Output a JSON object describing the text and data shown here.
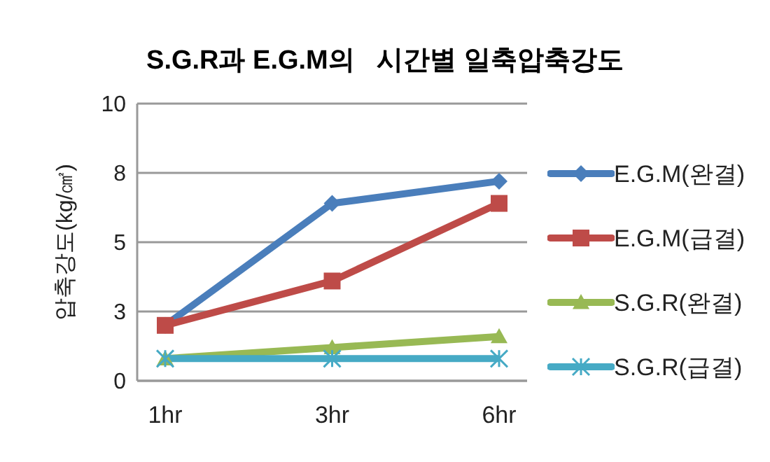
{
  "chart_data": {
    "type": "line",
    "title": "S.G.R과 E.G.M의   시간별 일축압축강도",
    "ylabel": "압축강도(kg/㎠)",
    "categories": [
      "1hr",
      "3hr",
      "6hr"
    ],
    "series": [
      {
        "name": "E.G.M(완결)",
        "color": "#4a7ebb",
        "marker": "diamond",
        "values": [
          2,
          6.4,
          7.2
        ]
      },
      {
        "name": "E.G.M(급결)",
        "color": "#be4b48",
        "marker": "square",
        "values": [
          2,
          3.6,
          6.4
        ]
      },
      {
        "name": "S.G.R(완결)",
        "color": "#98b954",
        "marker": "triangle",
        "values": [
          0.8,
          1.2,
          1.6
        ]
      },
      {
        "name": "S.G.R(급결)",
        "color": "#46aac5",
        "marker": "cross",
        "values": [
          0.8,
          0.8,
          0.8
        ]
      }
    ],
    "ylim": [
      0,
      10
    ],
    "yticks": [
      0,
      {
        "value": 2.5,
        "label": "3"
      },
      5,
      {
        "value": 7.5,
        "label": "8"
      },
      10
    ],
    "grid": "y",
    "legend": "right"
  }
}
